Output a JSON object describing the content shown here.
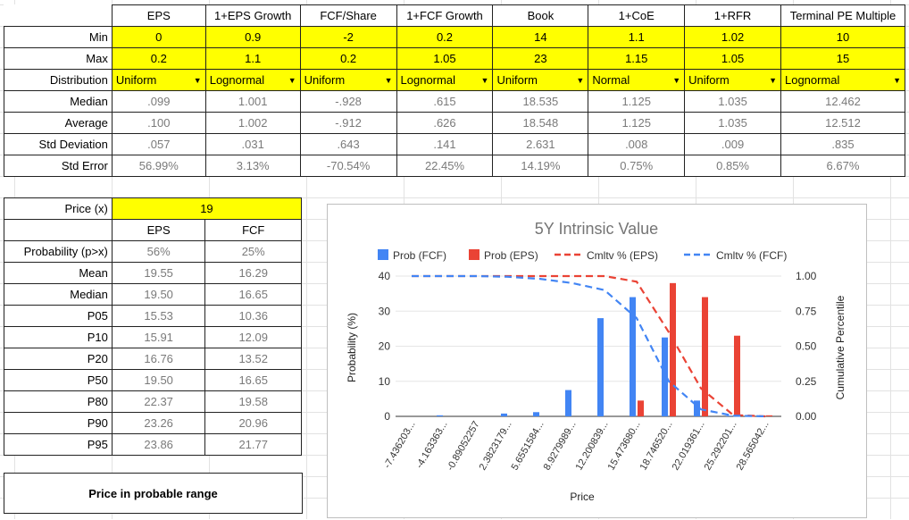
{
  "params": {
    "columns": [
      "EPS",
      "1+EPS Growth",
      "FCF/Share",
      "1+FCF Growth",
      "Book",
      "1+CoE",
      "1+RFR",
      "Terminal PE Multiple"
    ],
    "rows": [
      {
        "label": "Min",
        "values": [
          "0",
          "0.9",
          "-2",
          "0.2",
          "14",
          "1.1",
          "1.02",
          "10"
        ]
      },
      {
        "label": "Max",
        "values": [
          "0.2",
          "1.1",
          "0.2",
          "1.05",
          "23",
          "1.15",
          "1.05",
          "15"
        ]
      },
      {
        "label": "Distribution",
        "values": [
          "Uniform",
          "Lognormal",
          "Uniform",
          "Lognormal",
          "Uniform",
          "Normal",
          "Uniform",
          "Lognormal"
        ]
      },
      {
        "label": "Median",
        "values": [
          ".099",
          "1.001",
          "-.928",
          ".615",
          "18.535",
          "1.125",
          "1.035",
          "12.462"
        ]
      },
      {
        "label": "Average",
        "values": [
          ".100",
          "1.002",
          "-.912",
          ".626",
          "18.548",
          "1.125",
          "1.035",
          "12.512"
        ]
      },
      {
        "label": "Std Deviation",
        "values": [
          ".057",
          ".031",
          ".643",
          ".141",
          "2.631",
          ".008",
          ".009",
          ".835"
        ]
      },
      {
        "label": "Std Error",
        "values": [
          "56.99%",
          "3.13%",
          "-70.54%",
          "22.45%",
          "14.19%",
          "0.75%",
          "0.85%",
          "6.67%"
        ]
      }
    ]
  },
  "price": {
    "label": "Price (x)",
    "value": "19",
    "columns": [
      "EPS",
      "FCF"
    ],
    "rows": [
      {
        "label": "Probability (p>x)",
        "values": [
          "56%",
          "25%"
        ]
      },
      {
        "label": "Mean",
        "values": [
          "19.55",
          "16.29"
        ]
      },
      {
        "label": "Median",
        "values": [
          "19.50",
          "16.65"
        ]
      },
      {
        "label": "P05",
        "values": [
          "15.53",
          "10.36"
        ]
      },
      {
        "label": "P10",
        "values": [
          "15.91",
          "12.09"
        ]
      },
      {
        "label": "P20",
        "values": [
          "16.76",
          "13.52"
        ]
      },
      {
        "label": "P50",
        "values": [
          "19.50",
          "16.65"
        ]
      },
      {
        "label": "P80",
        "values": [
          "22.37",
          "19.58"
        ]
      },
      {
        "label": "P90",
        "values": [
          "23.26",
          "20.96"
        ]
      },
      {
        "label": "P95",
        "values": [
          "23.86",
          "21.77"
        ]
      }
    ]
  },
  "note": "Price in probable range",
  "chart_data": {
    "type": "bar",
    "title": "5Y Intrinsic Value",
    "xlabel": "Price",
    "ylabel": "Probability (%)",
    "y2label": "Cumulative Percentile",
    "categories": [
      "-7.436203...",
      "-4.163363...",
      "-0.89052257",
      "2.3823179...",
      "5.6551584...",
      "8.9279989...",
      "12.200839...",
      "15.473680...",
      "18.746520...",
      "22.019361...",
      "25.292201...",
      "28.565042..."
    ],
    "ylim": [
      0,
      40
    ],
    "yticks": [
      "0",
      "10",
      "20",
      "30",
      "40"
    ],
    "y2lim": [
      0,
      1
    ],
    "y2ticks": [
      "0.00",
      "0.25",
      "0.50",
      "0.75",
      "1.00"
    ],
    "legend_position": "top",
    "series": [
      {
        "name": "Prob (FCF)",
        "kind": "bar",
        "color": "#4285f4",
        "values": [
          0,
          0.3,
          0,
          0.8,
          1.2,
          7.5,
          28,
          34,
          22.5,
          4.5,
          0.2,
          0
        ]
      },
      {
        "name": "Prob (EPS)",
        "kind": "bar",
        "color": "#ea4335",
        "values": [
          0,
          0,
          0,
          0,
          0,
          0,
          0,
          4.5,
          38,
          34,
          23,
          0.3
        ]
      },
      {
        "name": "Cmltv % (EPS)",
        "kind": "line",
        "dash": true,
        "color": "#ea4335",
        "values": [
          1,
          1,
          1,
          1,
          1,
          1,
          1,
          0.96,
          0.6,
          0.2,
          0.01,
          0
        ]
      },
      {
        "name": "Cmltv % (FCF)",
        "kind": "line",
        "dash": true,
        "color": "#4285f4",
        "values": [
          1,
          1,
          1,
          0.995,
          0.98,
          0.95,
          0.9,
          0.7,
          0.25,
          0.05,
          0.005,
          0
        ]
      }
    ]
  }
}
